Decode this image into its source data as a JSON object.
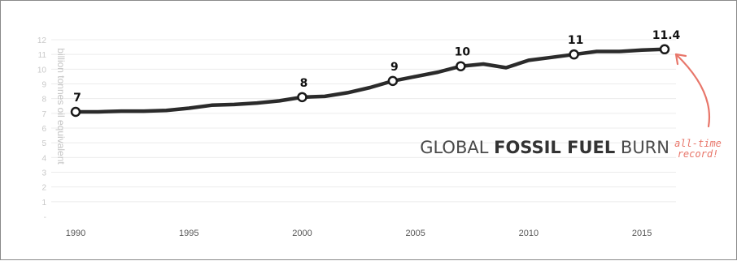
{
  "chart_data": {
    "type": "line",
    "title_parts": [
      "GLOBAL ",
      "FOSSIL FUEL",
      " BURN"
    ],
    "ylabel": "billion tonnes oil equivalent",
    "xlabel": "",
    "ylim": [
      0,
      12
    ],
    "xlim": [
      1990,
      2016
    ],
    "grid": true,
    "y_tick_labels": [
      "-",
      "1",
      "2",
      "3",
      "4",
      "5",
      "6",
      "7",
      "8",
      "9",
      "10",
      "11",
      "12"
    ],
    "x_tick_labels": [
      "1990",
      "1995",
      "2000",
      "2005",
      "2010",
      "2015"
    ],
    "series": [
      {
        "x": [
          1990,
          1991,
          1992,
          1993,
          1994,
          1995,
          1996,
          1997,
          1998,
          1999,
          2000,
          2001,
          2002,
          2003,
          2004,
          2005,
          2006,
          2007,
          2008,
          2009,
          2010,
          2011,
          2012,
          2013,
          2014,
          2015,
          2016
        ],
        "values": [
          7.1,
          7.1,
          7.15,
          7.15,
          7.2,
          7.35,
          7.55,
          7.6,
          7.7,
          7.85,
          8.1,
          8.15,
          8.4,
          8.75,
          9.2,
          9.5,
          9.8,
          10.2,
          10.35,
          10.1,
          10.6,
          10.8,
          11.0,
          11.2,
          11.2,
          11.3,
          11.35
        ]
      }
    ],
    "labeled_points": [
      {
        "x": 1990,
        "y": 7.1,
        "label": "7"
      },
      {
        "x": 2000,
        "y": 8.1,
        "label": "8"
      },
      {
        "x": 2004,
        "y": 9.2,
        "label": "9"
      },
      {
        "x": 2007,
        "y": 10.2,
        "label": "10"
      },
      {
        "x": 2012,
        "y": 11.0,
        "label": "11"
      },
      {
        "x": 2016,
        "y": 11.35,
        "label": "11.4"
      }
    ],
    "annotation": {
      "line1": "all-time",
      "line2": "record!"
    },
    "colors": {
      "line": "#2b2b2b",
      "annotation": "#e8766a",
      "grid": "#ececec"
    }
  }
}
